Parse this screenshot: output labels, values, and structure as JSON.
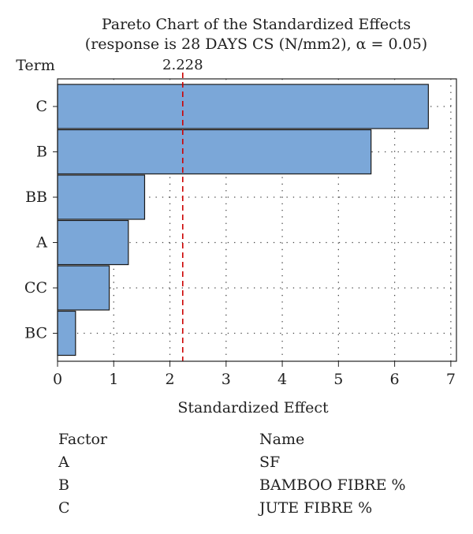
{
  "chart_data": {
    "type": "bar",
    "orientation": "horizontal",
    "title": "Pareto Chart of the Standardized Effects",
    "subtitle": "(response is 28 DAYS CS (N/mm2), α = 0.05)",
    "xlabel": "Standardized Effect",
    "ylabel": "Term",
    "categories": [
      "C",
      "B",
      "BB",
      "A",
      "CC",
      "BC"
    ],
    "values": [
      6.6,
      5.58,
      1.55,
      1.26,
      0.92,
      0.32
    ],
    "xlim": [
      0,
      7.1
    ],
    "xticks": [
      0,
      1,
      2,
      3,
      4,
      5,
      6,
      7
    ],
    "reference_line": {
      "value": 2.228,
      "label": "2.228",
      "color": "#cc0000"
    },
    "bar_color": "#7ba7d8",
    "grid": true
  },
  "legend": {
    "header": {
      "factor": "Factor",
      "name": "Name"
    },
    "rows": [
      {
        "factor": "A",
        "name": "SF"
      },
      {
        "factor": "B",
        "name": "BAMBOO FIBRE %"
      },
      {
        "factor": "C",
        "name": "JUTE FIBRE %"
      }
    ]
  }
}
